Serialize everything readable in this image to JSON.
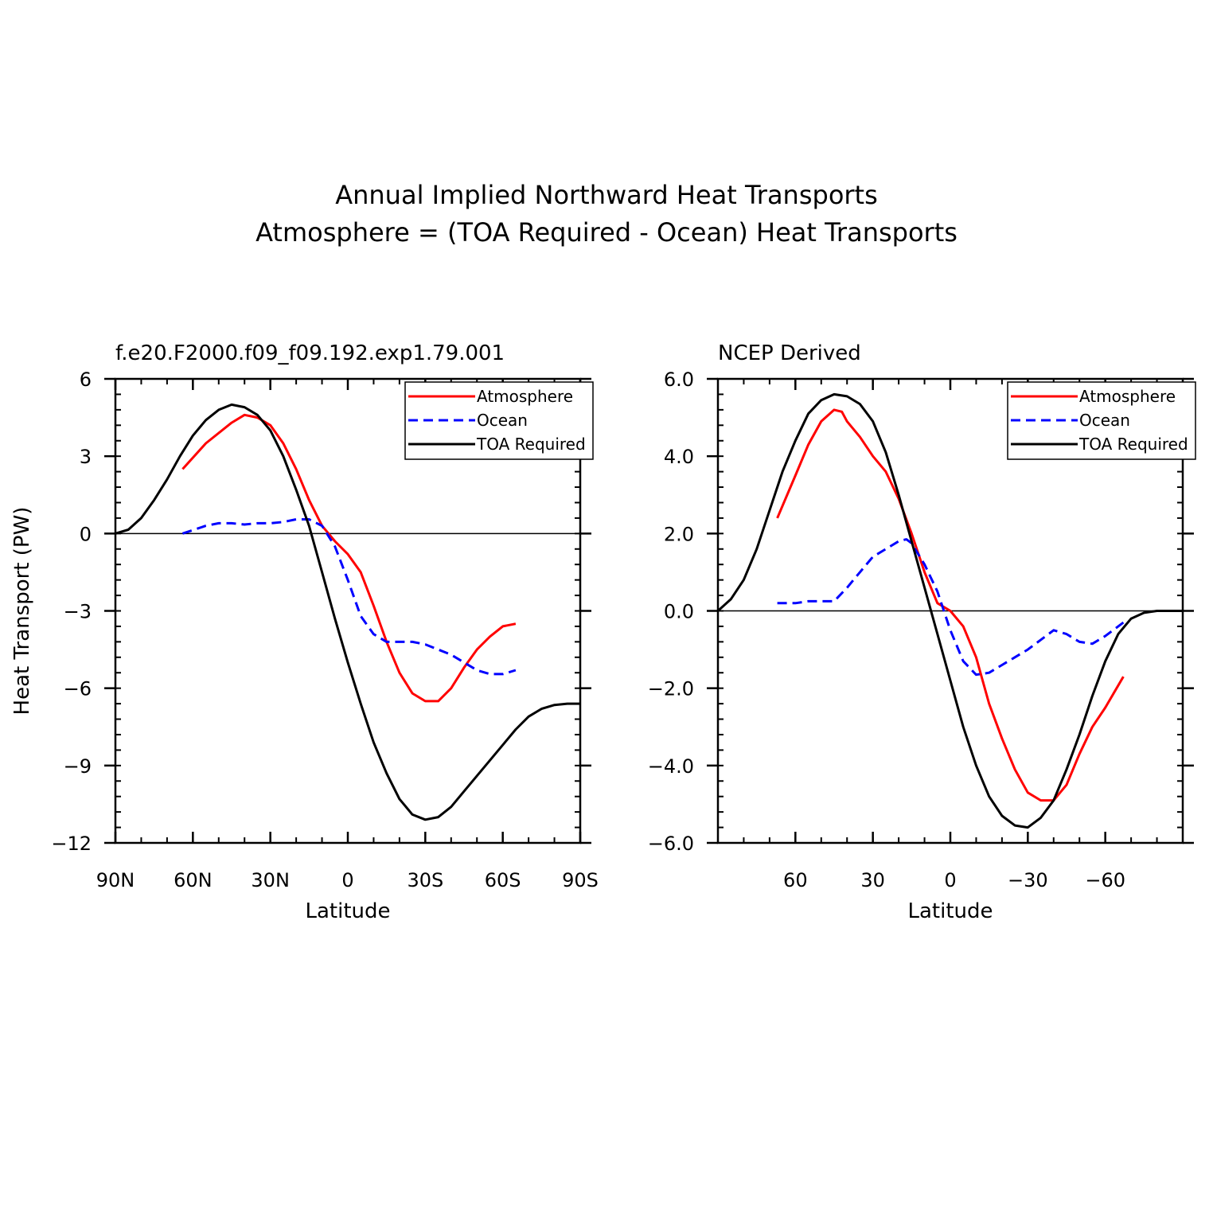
{
  "figure": {
    "title_line1": "Annual Implied Northward Heat Transports",
    "title_line2": "Atmosphere = (TOA Required - Ocean) Heat Transports"
  },
  "colors": {
    "atmosphere": "#ff0000",
    "ocean": "#0000ff",
    "toa": "#000000"
  },
  "chart_data": [
    {
      "type": "line",
      "subtitle": "f.e20.F2000.f09_f09.192.exp1.79.001",
      "xlabel": "Latitude",
      "ylabel": "Heat Transport (PW)",
      "x_direction": "north-to-south",
      "xlim": [
        90,
        -90
      ],
      "ylim": [
        -12,
        6
      ],
      "xticks": [
        90,
        60,
        30,
        0,
        -30,
        -60,
        -90
      ],
      "xtick_labels": [
        "90N",
        "60N",
        "30N",
        "0",
        "30S",
        "60S",
        "90S"
      ],
      "yticks": [
        6,
        3,
        0,
        -3,
        -6,
        -9,
        -12
      ],
      "ytick_labels": [
        "6",
        "3",
        "0",
        "-3",
        "-6",
        "-9",
        "-12"
      ],
      "zero_line": true,
      "legend_position": "top-right",
      "series": [
        {
          "name": "Atmosphere",
          "color_key": "atmosphere",
          "dash": false,
          "x": [
            64,
            55,
            45,
            40,
            35,
            30,
            25,
            20,
            15,
            10,
            5,
            0,
            -5,
            -10,
            -15,
            -20,
            -25,
            -30,
            -35,
            -40,
            -45,
            -50,
            -55,
            -60,
            -65
          ],
          "y": [
            2.5,
            3.5,
            4.3,
            4.6,
            4.5,
            4.2,
            3.5,
            2.5,
            1.3,
            0.3,
            -0.3,
            -0.8,
            -1.5,
            -2.8,
            -4.2,
            -5.4,
            -6.2,
            -6.5,
            -6.5,
            -6.0,
            -5.2,
            -4.5,
            -4.0,
            -3.6,
            -3.5
          ]
        },
        {
          "name": "Ocean",
          "color_key": "ocean",
          "dash": true,
          "x": [
            64,
            55,
            50,
            45,
            40,
            35,
            30,
            25,
            20,
            15,
            10,
            5,
            0,
            -5,
            -10,
            -15,
            -20,
            -25,
            -30,
            -35,
            -40,
            -45,
            -50,
            -55,
            -60,
            -65
          ],
          "y": [
            0.0,
            0.3,
            0.4,
            0.4,
            0.35,
            0.4,
            0.4,
            0.45,
            0.55,
            0.55,
            0.3,
            -0.5,
            -1.8,
            -3.2,
            -3.9,
            -4.2,
            -4.2,
            -4.2,
            -4.3,
            -4.5,
            -4.7,
            -5.0,
            -5.3,
            -5.45,
            -5.45,
            -5.3
          ]
        },
        {
          "name": "TOA Required",
          "color_key": "toa",
          "dash": false,
          "x": [
            90,
            85,
            80,
            75,
            70,
            65,
            60,
            55,
            50,
            45,
            40,
            35,
            30,
            25,
            20,
            15,
            10,
            5,
            0,
            -5,
            -10,
            -15,
            -20,
            -25,
            -30,
            -35,
            -40,
            -45,
            -50,
            -55,
            -60,
            -65,
            -70,
            -75,
            -80,
            -85,
            -90
          ],
          "y": [
            0.0,
            0.15,
            0.6,
            1.3,
            2.1,
            3.0,
            3.8,
            4.4,
            4.8,
            5.0,
            4.9,
            4.6,
            4.0,
            3.0,
            1.7,
            0.3,
            -1.5,
            -3.3,
            -5.0,
            -6.6,
            -8.1,
            -9.3,
            -10.3,
            -10.9,
            -11.1,
            -11.0,
            -10.6,
            -10.0,
            -9.4,
            -8.8,
            -8.2,
            -7.6,
            -7.1,
            -6.8,
            -6.65,
            -6.6,
            -6.6
          ]
        }
      ]
    },
    {
      "type": "line",
      "subtitle": "NCEP Derived",
      "xlabel": "Latitude",
      "ylabel": "",
      "x_direction": "north-to-south",
      "xlim": [
        90,
        -90
      ],
      "ylim": [
        -6.0,
        6.0
      ],
      "xticks": [
        60,
        30,
        0,
        -30,
        -60
      ],
      "xtick_labels": [
        "60",
        "30",
        "0",
        "-30",
        "-60"
      ],
      "yticks": [
        6.0,
        4.0,
        2.0,
        0.0,
        -2.0,
        -4.0,
        -6.0
      ],
      "ytick_labels": [
        "6.0",
        "4.0",
        "2.0",
        "0.0",
        "-2.0",
        "-4.0",
        "-6.0"
      ],
      "zero_line": true,
      "legend_position": "top-right",
      "series": [
        {
          "name": "Atmosphere",
          "color_key": "atmosphere",
          "dash": false,
          "x": [
            67,
            60,
            55,
            50,
            45,
            42,
            40,
            35,
            30,
            25,
            20,
            15,
            10,
            5,
            0,
            -5,
            -10,
            -15,
            -20,
            -25,
            -30,
            -35,
            -40,
            -45,
            -50,
            -55,
            -60,
            -67
          ],
          "y": [
            2.4,
            3.5,
            4.3,
            4.9,
            5.2,
            5.15,
            4.9,
            4.5,
            4.0,
            3.6,
            2.9,
            2.0,
            1.0,
            0.2,
            0.0,
            -0.4,
            -1.2,
            -2.4,
            -3.3,
            -4.1,
            -4.7,
            -4.9,
            -4.9,
            -4.5,
            -3.7,
            -3.0,
            -2.5,
            -1.7
          ]
        },
        {
          "name": "Ocean",
          "color_key": "ocean",
          "dash": true,
          "x": [
            67,
            60,
            55,
            50,
            45,
            40,
            35,
            30,
            25,
            20,
            17,
            15,
            10,
            5,
            0,
            -5,
            -10,
            -15,
            -20,
            -25,
            -30,
            -35,
            -40,
            -45,
            -50,
            -55,
            -60,
            -67
          ],
          "y": [
            0.2,
            0.2,
            0.25,
            0.25,
            0.25,
            0.6,
            1.0,
            1.4,
            1.6,
            1.8,
            1.85,
            1.75,
            1.2,
            0.5,
            -0.5,
            -1.3,
            -1.65,
            -1.6,
            -1.4,
            -1.2,
            -1.0,
            -0.75,
            -0.5,
            -0.6,
            -0.8,
            -0.85,
            -0.65,
            -0.3
          ]
        },
        {
          "name": "TOA Required",
          "color_key": "toa",
          "dash": false,
          "x": [
            90,
            85,
            80,
            75,
            70,
            65,
            60,
            55,
            50,
            45,
            40,
            35,
            30,
            25,
            20,
            15,
            10,
            5,
            0,
            -5,
            -10,
            -15,
            -20,
            -25,
            -30,
            -35,
            -40,
            -45,
            -50,
            -55,
            -60,
            -65,
            -70,
            -75,
            -80,
            -85,
            -90
          ],
          "y": [
            0.0,
            0.3,
            0.8,
            1.6,
            2.6,
            3.6,
            4.4,
            5.1,
            5.45,
            5.6,
            5.55,
            5.35,
            4.9,
            4.1,
            3.0,
            1.8,
            0.6,
            -0.6,
            -1.8,
            -3.0,
            -4.0,
            -4.8,
            -5.3,
            -5.55,
            -5.6,
            -5.35,
            -4.9,
            -4.1,
            -3.2,
            -2.2,
            -1.3,
            -0.6,
            -0.2,
            -0.05,
            0.0,
            0.0,
            0.0
          ]
        }
      ]
    }
  ]
}
